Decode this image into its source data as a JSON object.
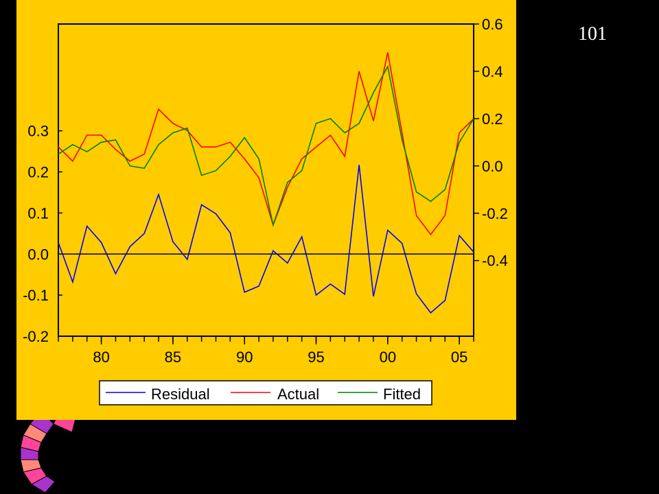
{
  "page_number": "101",
  "colors": {
    "background": "#000000",
    "panel": "#FFCC00",
    "residual": "#0000FF",
    "actual": "#FF0000",
    "fitted": "#008000",
    "decoration_pink": "#FF4499",
    "decoration_purple": "#AA33CC",
    "decoration_salmon": "#FF8877"
  },
  "chart_data": {
    "type": "line",
    "x": [
      1977,
      1978,
      1979,
      1980,
      1981,
      1982,
      1983,
      1984,
      1985,
      1986,
      1987,
      1988,
      1989,
      1990,
      1991,
      1992,
      1993,
      1994,
      1995,
      1996,
      1997,
      1998,
      1999,
      2000,
      2001,
      2002,
      2003,
      2004,
      2005,
      2006
    ],
    "x_ticks": [
      {
        "value": 1980,
        "label": "80"
      },
      {
        "value": 1985,
        "label": "85"
      },
      {
        "value": 1990,
        "label": "90"
      },
      {
        "value": 1995,
        "label": "95"
      },
      {
        "value": 2000,
        "label": "00"
      },
      {
        "value": 2005,
        "label": "05"
      }
    ],
    "xlim": [
      1977,
      2006
    ],
    "left_axis": {
      "ylim": [
        -0.2,
        0.56
      ],
      "ticks": [
        "0.3",
        "0.2",
        "0.1",
        "0.0",
        "-0.1",
        "-0.2"
      ],
      "tick_values": [
        0.3,
        0.2,
        0.1,
        0.0,
        -0.1,
        -0.2
      ]
    },
    "right_axis": {
      "ylim": [
        -0.72,
        0.6
      ],
      "ticks": [
        "0.6",
        "0.4",
        "0.2",
        "0.0",
        "-0.2",
        "-0.4"
      ],
      "tick_values": [
        0.6,
        0.4,
        0.2,
        0.0,
        -0.2,
        -0.4
      ]
    },
    "zero_line": 0.0,
    "grid": false,
    "legend_position": "bottom",
    "series": [
      {
        "name": "Residual",
        "axis": "left",
        "color": "#0000FF",
        "values": [
          0.028,
          -0.068,
          0.068,
          0.028,
          -0.048,
          0.018,
          0.05,
          0.145,
          0.03,
          -0.013,
          0.12,
          0.098,
          0.052,
          -0.093,
          -0.078,
          0.008,
          -0.022,
          0.042,
          -0.1,
          -0.073,
          -0.098,
          0.217,
          -0.103,
          0.058,
          0.026,
          -0.097,
          -0.143,
          -0.113,
          0.045,
          0.005
        ]
      },
      {
        "name": "Actual",
        "axis": "right",
        "color": "#FF0000",
        "values": [
          0.08,
          0.02,
          0.13,
          0.13,
          0.07,
          0.02,
          0.05,
          0.24,
          0.18,
          0.15,
          0.08,
          0.08,
          0.1,
          0.03,
          -0.05,
          -0.25,
          -0.09,
          0.03,
          0.08,
          0.13,
          0.04,
          0.4,
          0.19,
          0.48,
          0.14,
          -0.21,
          -0.29,
          -0.21,
          0.14,
          0.2
        ]
      },
      {
        "name": "Fitted",
        "axis": "right",
        "color": "#008000",
        "values": [
          0.05,
          0.09,
          0.06,
          0.1,
          0.11,
          0.0,
          -0.01,
          0.09,
          0.14,
          0.16,
          -0.04,
          -0.02,
          0.04,
          0.12,
          0.03,
          -0.25,
          -0.07,
          -0.02,
          0.18,
          0.2,
          0.14,
          0.18,
          0.31,
          0.42,
          0.11,
          -0.11,
          -0.15,
          -0.1,
          0.1,
          0.2
        ]
      }
    ]
  }
}
